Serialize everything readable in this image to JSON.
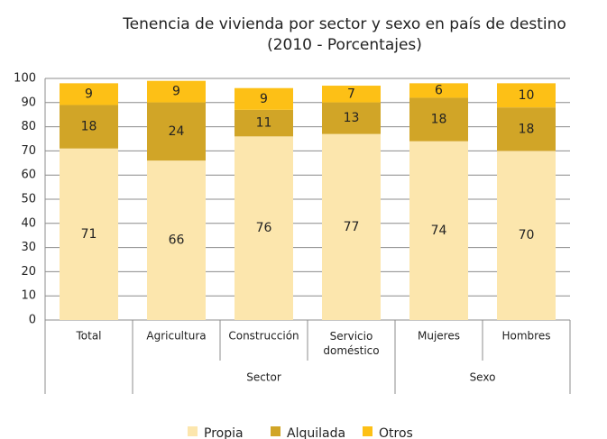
{
  "chart_data": {
    "type": "stacked_bar",
    "title": "Tenencia de vivienda por sector y sexo en país de destino",
    "subtitle": "(2010  - Porcentajes)",
    "categories": [
      "Total",
      "Agricultura",
      "Construcción",
      "Servicio doméstico",
      "Mujeres",
      "Hombres"
    ],
    "groups": [
      {
        "name": "Sector",
        "categories": [
          "Agricultura",
          "Construcción",
          "Servicio doméstico"
        ]
      },
      {
        "name": "Sexo",
        "categories": [
          "Mujeres",
          "Hombres"
        ]
      }
    ],
    "series": [
      {
        "name": "Propia",
        "color": "#fce6ad",
        "values": [
          71,
          66,
          76,
          77,
          74,
          70
        ]
      },
      {
        "name": "Alquilada",
        "color": "#d1a527",
        "values": [
          18,
          24,
          11,
          13,
          18,
          18
        ]
      },
      {
        "name": "Otros",
        "color": "#fdc016",
        "values": [
          9,
          9,
          9,
          7,
          6,
          10
        ]
      }
    ],
    "ylim": [
      0,
      100
    ],
    "yticks": [
      0,
      10,
      20,
      30,
      40,
      50,
      60,
      70,
      80,
      90,
      100
    ],
    "grid": true,
    "legend": "bottom"
  }
}
